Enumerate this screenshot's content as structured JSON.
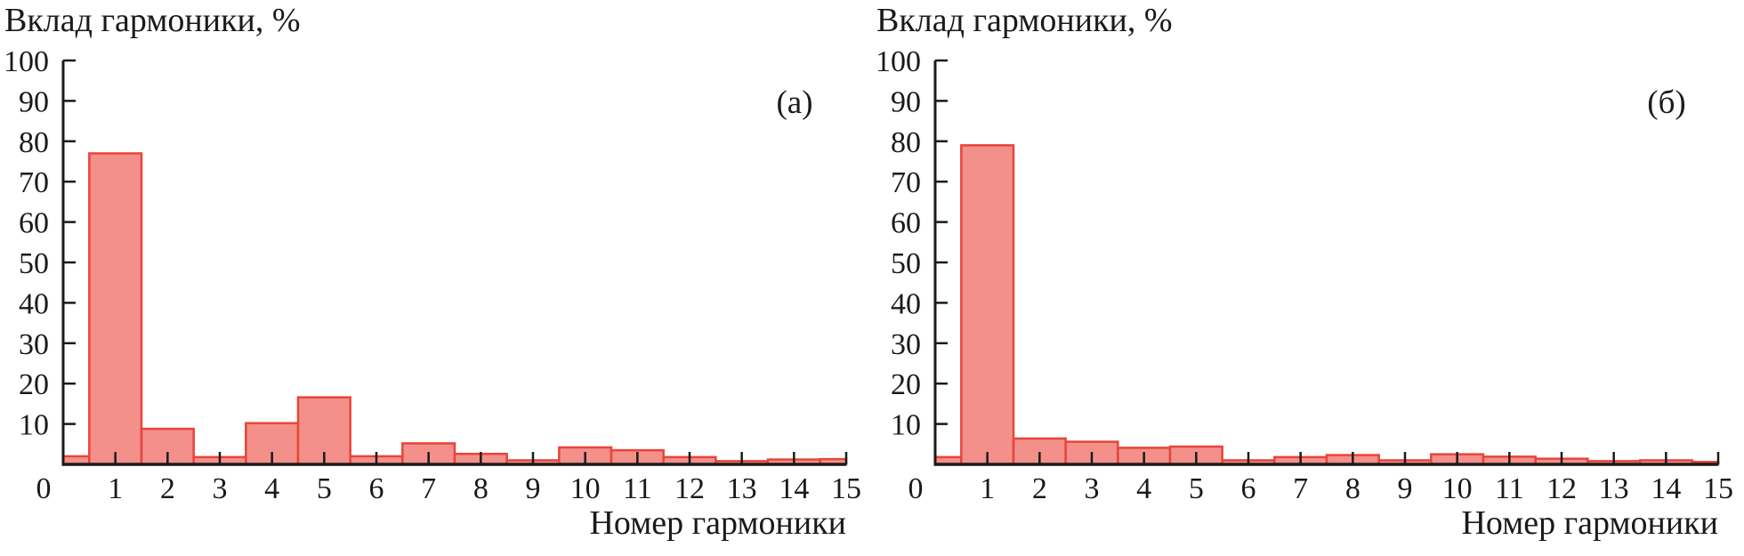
{
  "style": {
    "bar_fill": "#f4908a",
    "bar_stroke": "#e8443a",
    "axis_color": "#1a1a1a",
    "text_color": "#1a1a1a",
    "background": "#ffffff"
  },
  "chart_data": [
    {
      "type": "bar",
      "panel_label": "(а)",
      "title": "Вклад гармоники, %",
      "xlabel": "Номер гармоники",
      "ylabel": "Вклад гармоники, %",
      "xlim": [
        0,
        15
      ],
      "ylim": [
        0,
        100
      ],
      "grid": "off",
      "legend": "none",
      "yticks": [
        10,
        20,
        30,
        40,
        50,
        60,
        70,
        80,
        90,
        100
      ],
      "xticks": [
        0,
        1,
        2,
        3,
        4,
        5,
        6,
        7,
        8,
        9,
        10,
        11,
        12,
        13,
        14,
        15
      ],
      "bin_width": 1,
      "x": [
        0,
        1,
        2,
        3,
        4,
        5,
        6,
        7,
        8,
        9,
        10,
        11,
        12,
        13,
        14,
        15
      ],
      "values": [
        2.0,
        77,
        8.8,
        1.8,
        10.2,
        16.6,
        2.0,
        5.2,
        2.6,
        1.0,
        4.2,
        3.5,
        1.8,
        0.8,
        1.2,
        1.3
      ]
    },
    {
      "type": "bar",
      "panel_label": "(б)",
      "title": "Вклад гармоники, %",
      "xlabel": "Номер гармоники",
      "ylabel": "Вклад гармоники, %",
      "xlim": [
        0,
        15
      ],
      "ylim": [
        0,
        100
      ],
      "grid": "off",
      "legend": "none",
      "yticks": [
        10,
        20,
        30,
        40,
        50,
        60,
        70,
        80,
        90,
        100
      ],
      "xticks": [
        0,
        1,
        2,
        3,
        4,
        5,
        6,
        7,
        8,
        9,
        10,
        11,
        12,
        13,
        14,
        15
      ],
      "bin_width": 1,
      "x": [
        0,
        1,
        2,
        3,
        4,
        5,
        6,
        7,
        8,
        9,
        10,
        11,
        12,
        13,
        14,
        15
      ],
      "values": [
        1.8,
        79,
        6.4,
        5.6,
        4.1,
        4.4,
        1.0,
        1.8,
        2.3,
        1.0,
        2.5,
        1.9,
        1.4,
        0.8,
        1.0,
        0.6
      ]
    }
  ]
}
